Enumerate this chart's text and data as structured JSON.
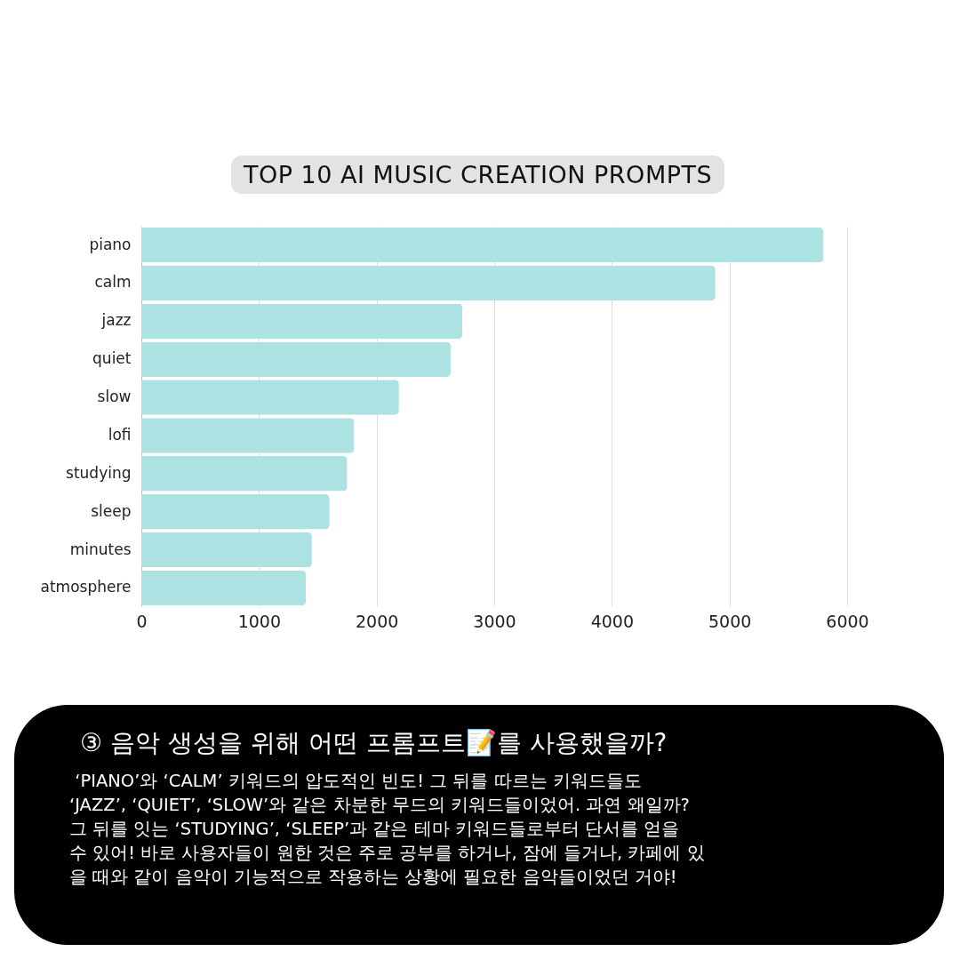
{
  "chart_data": {
    "type": "bar",
    "orientation": "horizontal",
    "title": "TOP 10 AI MUSIC CREATION PROMPTS",
    "categories": [
      "piano",
      "calm",
      "jazz",
      "quiet",
      "slow",
      "lofi",
      "studying",
      "sleep",
      "minutes",
      "atmosphere"
    ],
    "values": [
      5800,
      4880,
      2730,
      2630,
      2190,
      1810,
      1750,
      1600,
      1450,
      1400
    ],
    "color": "#ace3e2",
    "xlim": [
      0,
      6000
    ],
    "xticks": [
      0,
      1000,
      2000,
      3000,
      4000,
      5000,
      6000
    ],
    "grid": "x",
    "annotations": [
      "③ 음악 생성을 위해 어떤 프롬프트📝를 사용했을까?",
      " ‘PIANO’와 ‘CALM’ 키워드의 압도적인 빈도! 그 뒤를 따르는 키워드들도\n‘JAZZ’, ‘QUIET’, ‘SLOW’와 같은 차분한 무드의 키워드들이었어. 과연 왜일까?\n그 뒤를 잇는 ‘STUDYING’, ‘SLEEP’과 같은 테마 키워드들로부터 단서를 얻을\n수 있어! 바로 사용자들이 원한 것은 주로 공부를 하거나, 잠에 들거나, 카페에 있\n을 때와 같이 음악이 기능적으로 작용하는 상황에 필요한 음악들이었던 거야!"
    ]
  }
}
